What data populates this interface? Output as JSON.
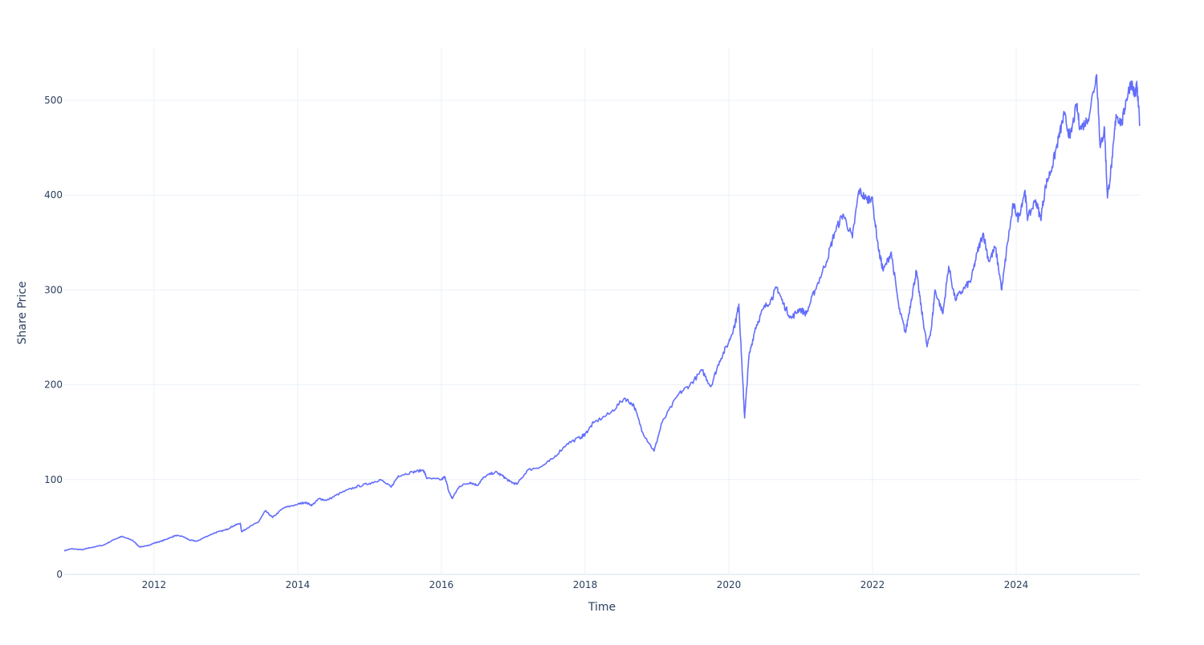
{
  "chart_data": {
    "type": "line",
    "title": "",
    "xlabel": "Time",
    "ylabel": "Share Price",
    "xlim": [
      2010.75,
      2025.72
    ],
    "ylim": [
      0,
      555
    ],
    "grid": true,
    "legend": "none",
    "x_ticks": [
      2012,
      2014,
      2016,
      2018,
      2020,
      2022,
      2024
    ],
    "x_tick_labels": [
      "2012",
      "2014",
      "2016",
      "2018",
      "2020",
      "2022",
      "2024"
    ],
    "y_ticks": [
      0,
      100,
      200,
      300,
      400,
      500
    ],
    "y_tick_labels": [
      "0",
      "100",
      "200",
      "300",
      "400",
      "500"
    ],
    "line_color": "#636efa",
    "series": [
      {
        "name": "Share Price",
        "x": [
          2010.75,
          2010.85,
          2011.0,
          2011.1,
          2011.3,
          2011.45,
          2011.55,
          2011.7,
          2011.8,
          2011.9,
          2012.0,
          2012.1,
          2012.2,
          2012.3,
          2012.4,
          2012.5,
          2012.6,
          2012.7,
          2012.85,
          2013.0,
          2013.1,
          2013.2,
          2013.22,
          2013.3,
          2013.45,
          2013.55,
          2013.65,
          2013.8,
          2014.0,
          2014.1,
          2014.2,
          2014.3,
          2014.4,
          2014.6,
          2014.8,
          2015.0,
          2015.15,
          2015.3,
          2015.4,
          2015.6,
          2015.75,
          2015.8,
          2016.0,
          2016.05,
          2016.1,
          2016.15,
          2016.25,
          2016.4,
          2016.5,
          2016.6,
          2016.75,
          2016.85,
          2016.95,
          2017.05,
          2017.2,
          2017.4,
          2017.55,
          2017.75,
          2017.95,
          2018.0,
          2018.12,
          2018.35,
          2018.55,
          2018.68,
          2018.8,
          2018.96,
          2019.07,
          2019.3,
          2019.46,
          2019.63,
          2019.75,
          2019.87,
          2020.0,
          2020.09,
          2020.14,
          2020.19,
          2020.22,
          2020.28,
          2020.37,
          2020.48,
          2020.59,
          2020.67,
          2020.76,
          2020.87,
          2020.98,
          2021.08,
          2021.2,
          2021.36,
          2021.47,
          2021.59,
          2021.72,
          2021.81,
          2021.92,
          2021.99,
          2022.09,
          2022.15,
          2022.26,
          2022.37,
          2022.46,
          2022.54,
          2022.61,
          2022.68,
          2022.76,
          2022.82,
          2022.87,
          2022.98,
          2023.06,
          2023.15,
          2023.26,
          2023.37,
          2023.46,
          2023.54,
          2023.62,
          2023.71,
          2023.8,
          2023.88,
          2023.96,
          2024.03,
          2024.12,
          2024.16,
          2024.27,
          2024.34,
          2024.41,
          2024.5,
          2024.59,
          2024.67,
          2024.75,
          2024.84,
          2024.89,
          2025.0,
          2025.12,
          2025.17,
          2025.23,
          2025.27,
          2025.34,
          2025.39,
          2025.47,
          2025.53,
          2025.6,
          2025.65,
          2025.68,
          2025.72
        ],
        "y": [
          25,
          27,
          26,
          28,
          31,
          37,
          40,
          36,
          29,
          30,
          33,
          35,
          38,
          41,
          40,
          36,
          35,
          39,
          44,
          47,
          51,
          54,
          45,
          49,
          55,
          67,
          60,
          70,
          74,
          76,
          73,
          80,
          78,
          86,
          92,
          96,
          100,
          92,
          104,
          108,
          110,
          101,
          100,
          103,
          88,
          80,
          93,
          97,
          94,
          103,
          108,
          104,
          98,
          95,
          110,
          114,
          122,
          138,
          145,
          148,
          160,
          170,
          186,
          178,
          150,
          130,
          160,
          190,
          200,
          215,
          198,
          225,
          245,
          265,
          285,
          210,
          165,
          230,
          260,
          280,
          290,
          303,
          285,
          270,
          280,
          275,
          300,
          330,
          360,
          380,
          355,
          405,
          395,
          398,
          340,
          320,
          340,
          280,
          255,
          290,
          320,
          280,
          240,
          260,
          300,
          275,
          325,
          290,
          300,
          310,
          340,
          360,
          330,
          345,
          300,
          350,
          390,
          375,
          405,
          375,
          395,
          375,
          410,
          430,
          460,
          485,
          460,
          495,
          470,
          480,
          527,
          450,
          470,
          397,
          440,
          485,
          475,
          500,
          520,
          505,
          515,
          475
        ]
      }
    ]
  }
}
